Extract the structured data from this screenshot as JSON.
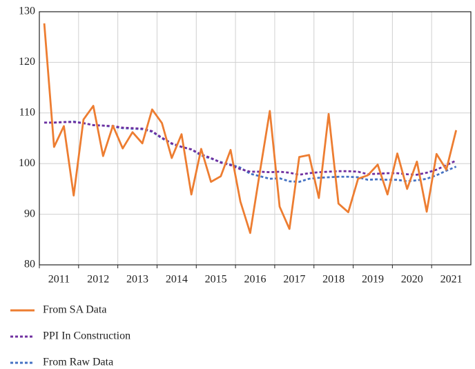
{
  "chart_data": {
    "type": "line",
    "categories": [
      "2011",
      null,
      null,
      null,
      "2012",
      null,
      null,
      null,
      "2013",
      null,
      null,
      null,
      "2014",
      null,
      null,
      null,
      "2015",
      null,
      null,
      null,
      "2016",
      null,
      null,
      null,
      "2017",
      null,
      null,
      null,
      "2018",
      null,
      null,
      null,
      "2019",
      null,
      null,
      null,
      "2020",
      null,
      null,
      null,
      "2021",
      null,
      null
    ],
    "series": [
      {
        "name": "From SA Data",
        "color": "#ED7D31",
        "dashed": false,
        "values": [
          127.7,
          103.3,
          107.4,
          93.7,
          108.7,
          111.4,
          101.5,
          107.5,
          103.0,
          106.2,
          104.0,
          110.7,
          108.0,
          101.1,
          105.8,
          93.9,
          102.9,
          96.4,
          97.5,
          102.7,
          92.5,
          86.3,
          98.5,
          110.4,
          91.5,
          87.1,
          101.3,
          101.7,
          93.2,
          109.8,
          92.1,
          90.4,
          97.0,
          97.7,
          99.8,
          93.9,
          102.0,
          95.0,
          100.4,
          90.5,
          101.9,
          98.8,
          106.6
        ]
      },
      {
        "name": "PPI In Construction",
        "color": "#7030A0",
        "dashed": true,
        "values": [
          108.1,
          108.1,
          108.2,
          108.2,
          108.0,
          107.6,
          107.5,
          107.4,
          107.1,
          107.0,
          106.9,
          106.4,
          105.1,
          104.0,
          103.3,
          102.8,
          101.8,
          101.1,
          100.2,
          99.7,
          98.9,
          98.4,
          98.4,
          98.3,
          98.4,
          98.2,
          97.8,
          98.1,
          98.3,
          98.4,
          98.5,
          98.5,
          98.4,
          97.9,
          98.0,
          98.1,
          98.1,
          97.9,
          97.8,
          98.2,
          98.8,
          99.7,
          100.6
        ]
      },
      {
        "name": "From Raw Data",
        "color": "#4472C4",
        "dashed": true,
        "values": [
          108.1,
          108.1,
          108.2,
          108.3,
          108.0,
          107.6,
          107.5,
          107.3,
          107.0,
          106.9,
          106.8,
          106.3,
          105.0,
          103.9,
          103.3,
          102.8,
          101.6,
          101.0,
          100.3,
          99.8,
          99.2,
          98.0,
          97.5,
          97.0,
          97.1,
          96.5,
          96.4,
          97.0,
          97.2,
          97.3,
          97.4,
          97.4,
          97.3,
          96.8,
          96.9,
          96.8,
          96.8,
          96.5,
          96.7,
          97.0,
          97.7,
          98.6,
          99.4
        ]
      }
    ],
    "ylim": [
      80,
      130
    ],
    "yticks": [
      80,
      90,
      100,
      110,
      120,
      130
    ],
    "grid": true,
    "legend": "bottom-left"
  }
}
